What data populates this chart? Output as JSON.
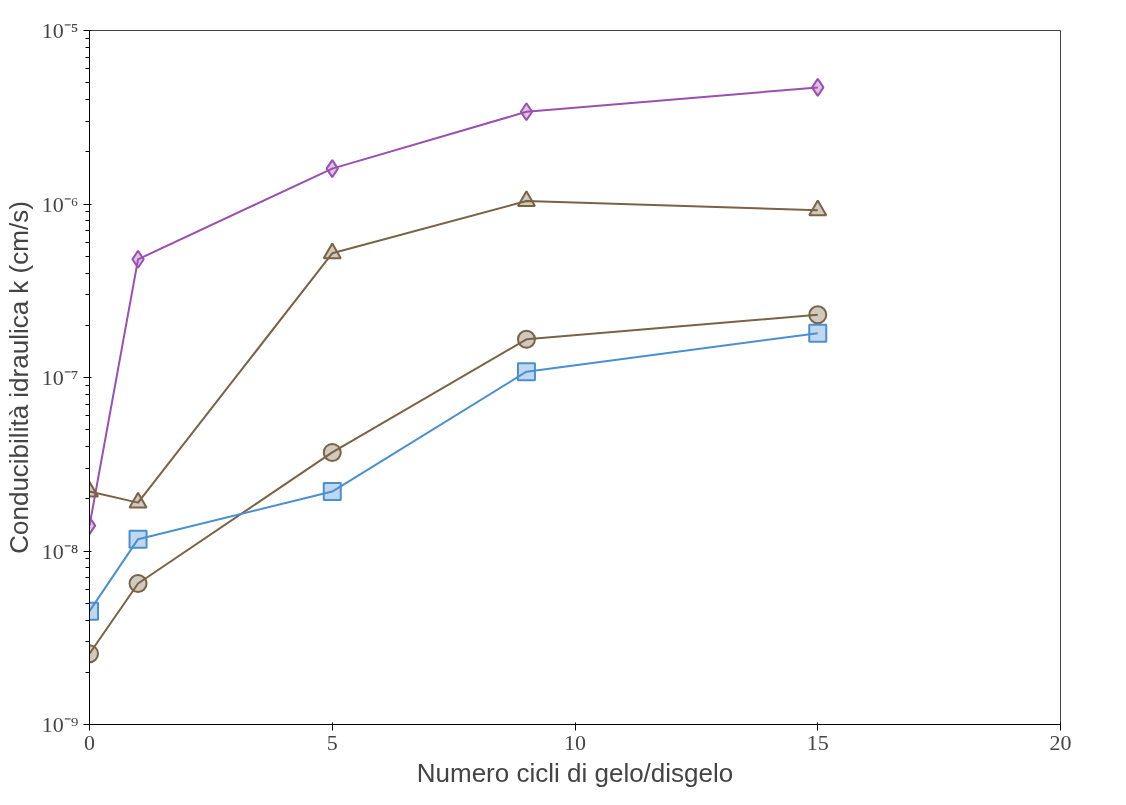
{
  "chart_data": {
    "type": "line",
    "xlabel": "Numero cicli di gelo/disgelo",
    "ylabel": "Conducibilità idraulica k (cm/s)",
    "x": [
      0,
      1,
      5,
      9,
      15
    ],
    "series": [
      {
        "color": "#9b4fb0",
        "marker": "diamond",
        "values": [
          1.4e-08,
          4.8e-07,
          1.6e-06,
          3.4e-06,
          4.7e-06
        ]
      },
      {
        "color": "#7a6245",
        "marker": "triangle",
        "values": [
          2.2e-08,
          1.9e-08,
          5.2e-07,
          1.04e-06,
          9.2e-07
        ]
      },
      {
        "color": "#7a6245",
        "marker": "circle",
        "values": [
          2.56e-09,
          6.5e-09,
          3.7e-08,
          1.66e-07,
          2.3e-07
        ]
      },
      {
        "color": "#4a8fd0",
        "marker": "square",
        "values": [
          4.5e-09,
          1.17e-08,
          2.2e-08,
          1.08e-07,
          1.8e-07
        ]
      }
    ],
    "log": "y",
    "xlim": [
      0,
      20
    ],
    "xticks": [
      0,
      5,
      10,
      15,
      20
    ],
    "ylim": [
      1e-09,
      1e-05
    ],
    "yticks": [
      {
        "value": 1e-09,
        "label": "10⁻⁹"
      },
      {
        "value": 1e-08,
        "label": "10⁻⁸"
      },
      {
        "value": 1e-07,
        "label": "10⁻⁷"
      },
      {
        "value": 1e-06,
        "label": "10⁻⁶"
      },
      {
        "value": 1e-05,
        "label": "10⁻⁵"
      }
    ],
    "grid": false,
    "line_style": "solid"
  }
}
